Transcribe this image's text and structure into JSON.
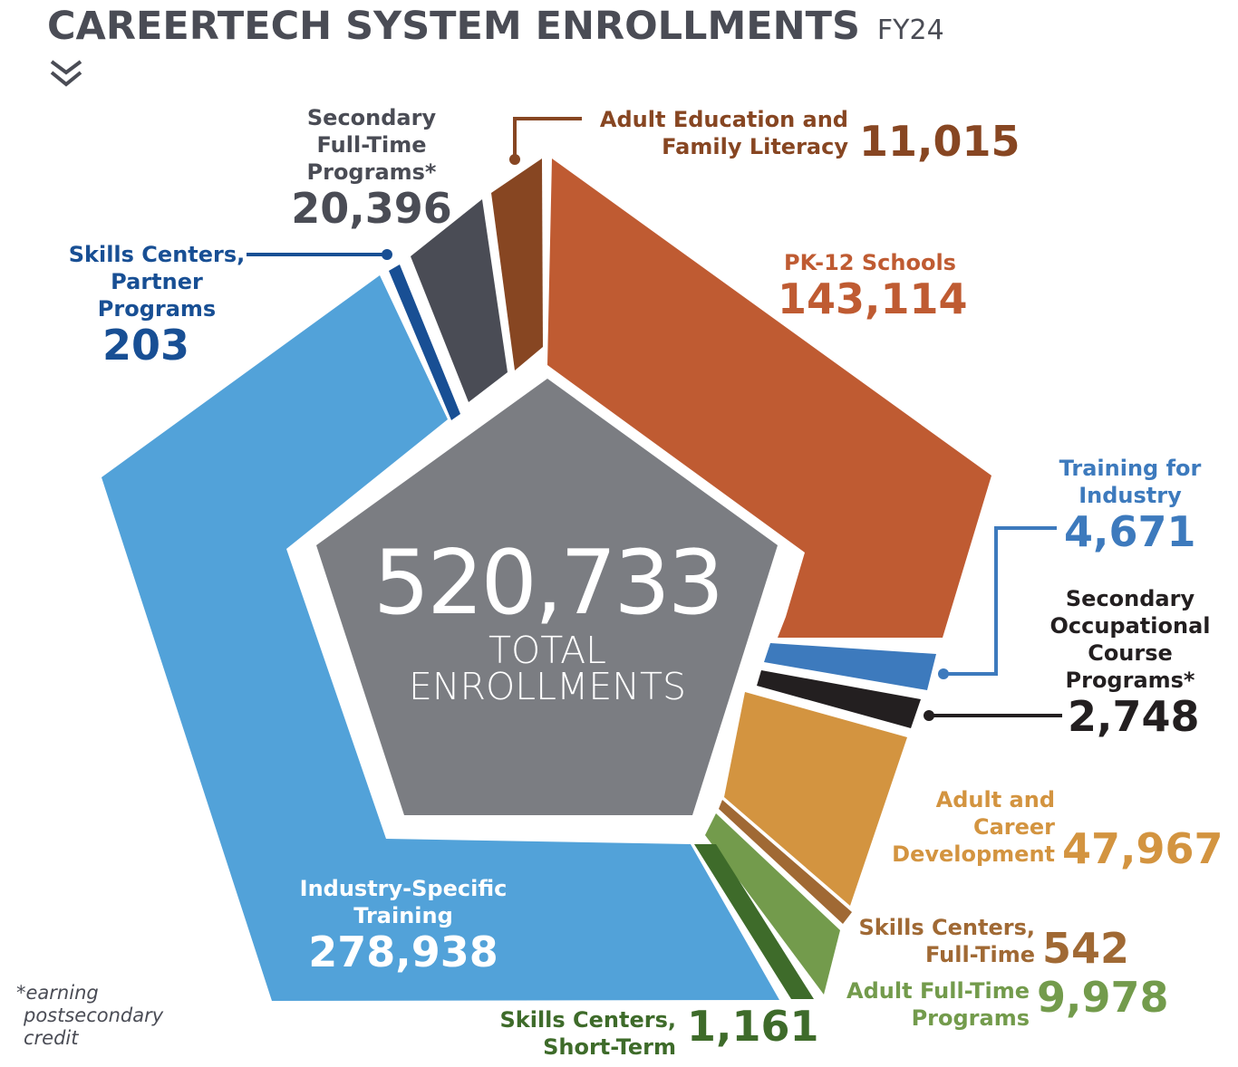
{
  "header": {
    "title": "CAREERTECH SYSTEM ENROLLMENTS",
    "fiscal_year": "FY24"
  },
  "center": {
    "total": "520,733",
    "line1": "TOTAL",
    "line2": "ENROLLMENTS"
  },
  "footnote": [
    "*earning",
    "postsecondary",
    "credit"
  ],
  "chart_data": {
    "type": "pie",
    "shape": "pentagon-donut",
    "title": "CareerTech System Enrollments FY24",
    "total": 520733,
    "total_label": "TOTAL ENROLLMENTS",
    "segments": [
      {
        "key": "pk12",
        "label_lines": [
          "PK-12 Schools"
        ],
        "label": "PK-12 Schools",
        "value": 143114,
        "value_text": "143,114",
        "color": "#bf5b32"
      },
      {
        "key": "tfi",
        "label_lines": [
          "Training for",
          "Industry"
        ],
        "label": "Training for Industry",
        "value": 4671,
        "value_text": "4,671",
        "color": "#3d7abd"
      },
      {
        "key": "soc",
        "label_lines": [
          "Secondary",
          "Occupational",
          "Course",
          "Programs*"
        ],
        "label": "Secondary Occupational Course Programs*",
        "value": 2748,
        "value_text": "2,748",
        "color": "#231f20"
      },
      {
        "key": "acd",
        "label_lines": [
          "Adult and",
          "Career",
          "Development"
        ],
        "label": "Adult and Career Development",
        "value": 47967,
        "value_text": "47,967",
        "color": "#d39440"
      },
      {
        "key": "scft",
        "label_lines": [
          "Skills Centers,",
          "Full-Time"
        ],
        "label": "Skills Centers, Full-Time",
        "value": 542,
        "value_text": "542",
        "color": "#a06934"
      },
      {
        "key": "aftp",
        "label_lines": [
          "Adult Full-Time",
          "Programs"
        ],
        "label": "Adult Full-Time Programs",
        "value": 9978,
        "value_text": "9,978",
        "color": "#739b4c"
      },
      {
        "key": "scst",
        "label_lines": [
          "Skills Centers,",
          "Short-Term"
        ],
        "label": "Skills Centers, Short-Term",
        "value": 1161,
        "value_text": "1,161",
        "color": "#3e6b2a"
      },
      {
        "key": "ist",
        "label_lines": [
          "Industry-Specific",
          "Training"
        ],
        "label": "Industry-Specific Training",
        "value": 278938,
        "value_text": "278,938",
        "color": "#52a2d9"
      },
      {
        "key": "scpp",
        "label_lines": [
          "Skills Centers,",
          "Partner",
          "Programs"
        ],
        "label": "Skills Centers, Partner Programs",
        "value": 203,
        "value_text": "203",
        "color": "#184f94"
      },
      {
        "key": "sftp",
        "label_lines": [
          "Secondary",
          "Full-Time",
          "Programs*"
        ],
        "label": "Secondary Full-Time Programs*",
        "value": 20396,
        "value_text": "20,396",
        "color": "#4a4c55"
      },
      {
        "key": "aefl",
        "label_lines": [
          "Adult Education and",
          "Family Literacy"
        ],
        "label": "Adult Education and Family Literacy",
        "value": 11015,
        "value_text": "11,015",
        "color": "#874622"
      }
    ],
    "center_color": "#7b7d82",
    "legend": "none (direct labels)"
  }
}
